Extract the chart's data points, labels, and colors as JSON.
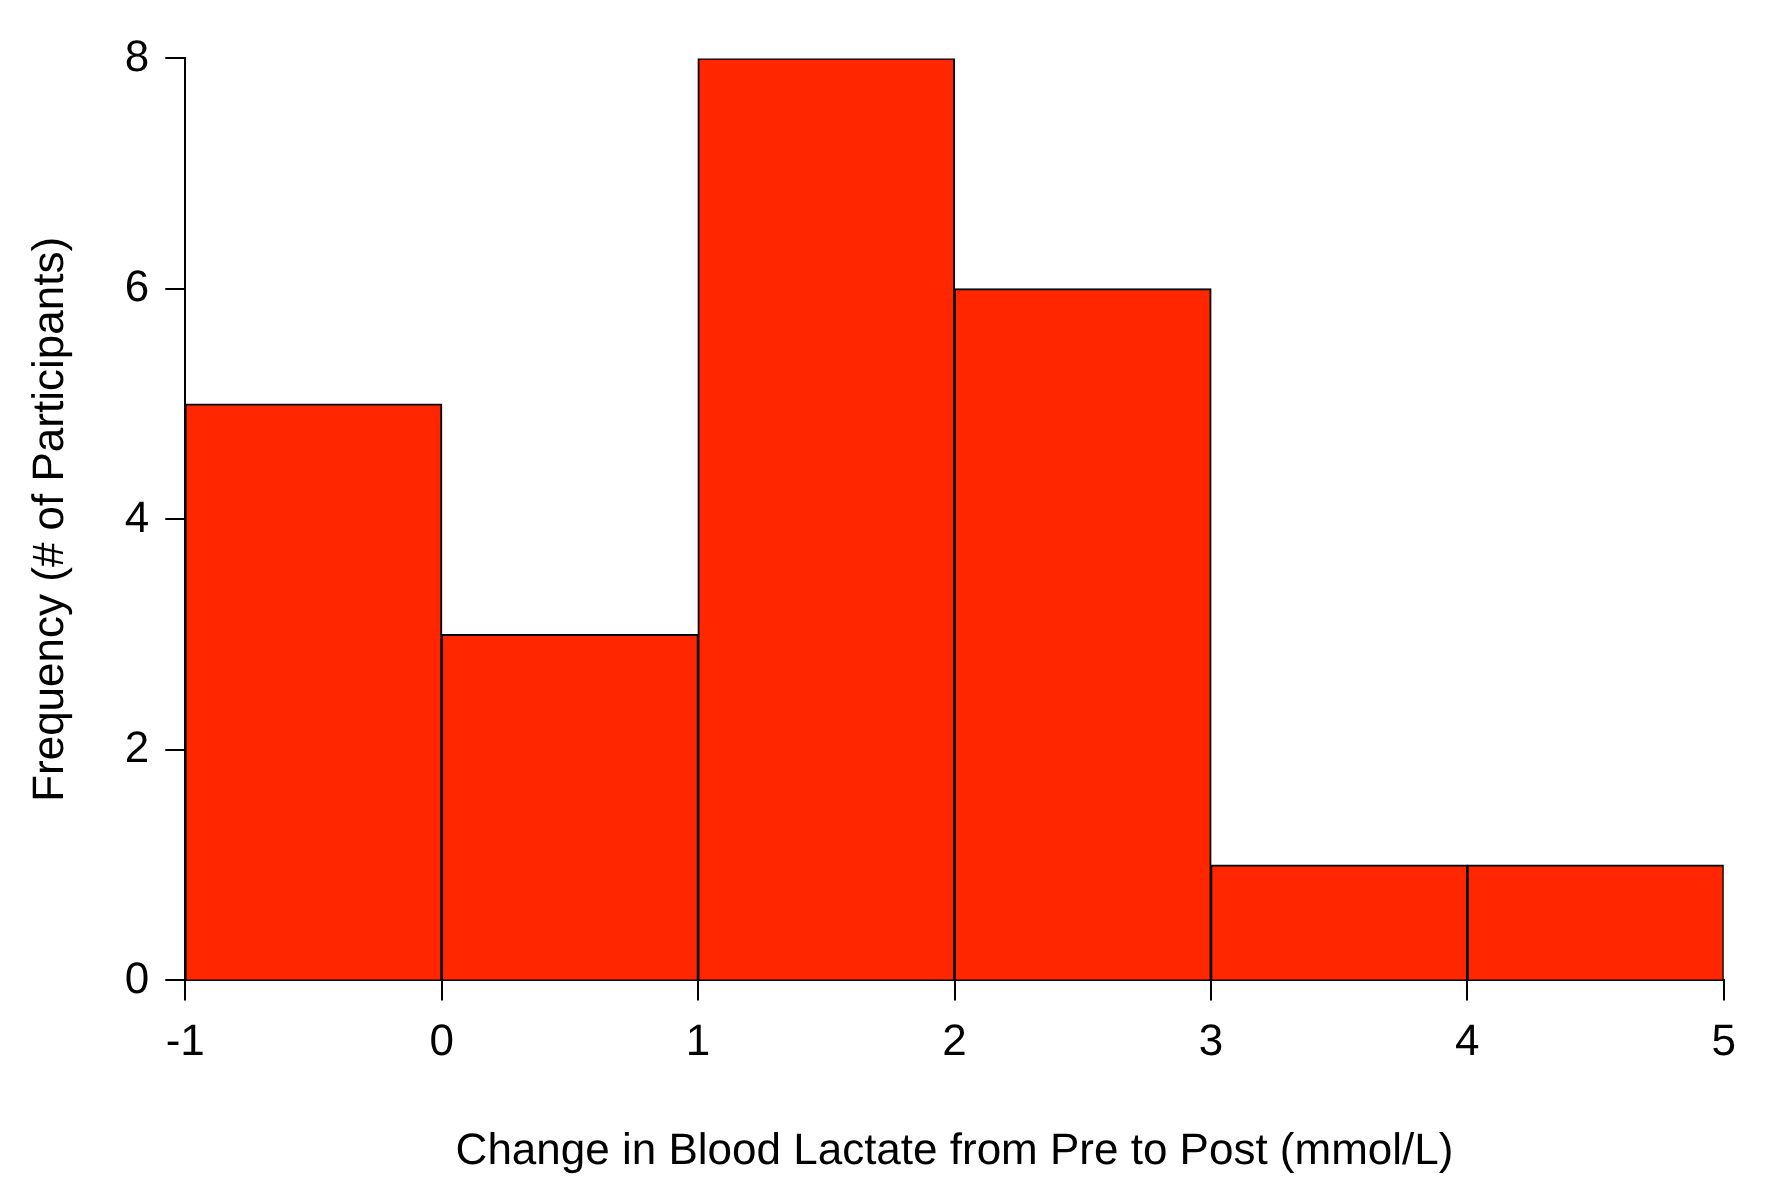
{
  "chart_data": {
    "type": "histogram",
    "xlabel": "Change in Blood Lactate from Pre to Post (mmol/L)",
    "ylabel": "Frequency (# of Participants)",
    "bins": [
      -1,
      0,
      1,
      2,
      3,
      4,
      5
    ],
    "values": [
      5,
      3,
      8,
      6,
      1,
      1
    ],
    "color": "#ff2600",
    "xlim": [
      -1,
      5
    ],
    "xticks": [
      -1,
      0,
      1,
      2,
      3,
      4,
      5
    ],
    "ylim": [
      0,
      8
    ],
    "yticks": [
      0,
      2,
      4,
      6,
      8
    ],
    "grid": false,
    "legend": false
  }
}
